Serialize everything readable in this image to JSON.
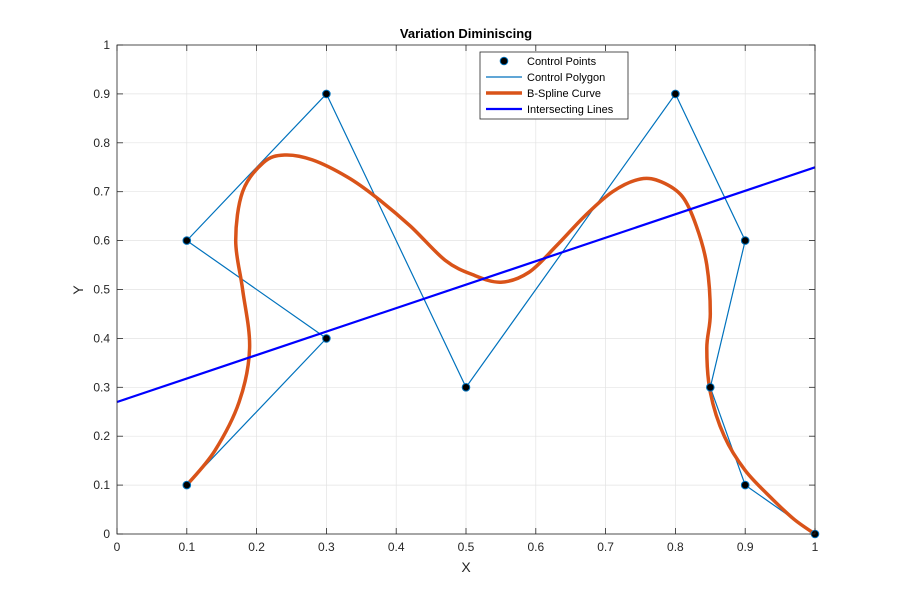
{
  "chart_data": {
    "type": "line",
    "title": "Variation Diminiscing",
    "xlabel": "X",
    "ylabel": "Y",
    "xlim": [
      0,
      1
    ],
    "ylim": [
      0,
      1
    ],
    "xticks": [
      0,
      0.1,
      0.2,
      0.3,
      0.4,
      0.5,
      0.6,
      0.7,
      0.8,
      0.9,
      1
    ],
    "yticks": [
      0,
      0.1,
      0.2,
      0.3,
      0.4,
      0.5,
      0.6,
      0.7,
      0.8,
      0.9,
      1
    ],
    "xtick_labels": [
      "0",
      "0.1",
      "0.2",
      "0.3",
      "0.4",
      "0.5",
      "0.6",
      "0.7",
      "0.8",
      "0.9",
      "1"
    ],
    "ytick_labels": [
      "0",
      "0.1",
      "0.2",
      "0.3",
      "0.4",
      "0.5",
      "0.6",
      "0.7",
      "0.8",
      "0.9",
      "1"
    ],
    "grid": true,
    "legend_position": "top-right",
    "series": [
      {
        "name": "Control Points",
        "kind": "markers",
        "color": "#000000",
        "marker_edge": "#0072BD",
        "x": [
          0.1,
          0.3,
          0.1,
          0.3,
          0.5,
          0.8,
          0.9,
          0.85,
          0.9,
          1
        ],
        "y": [
          0.1,
          0.4,
          0.6,
          0.9,
          0.3,
          0.9,
          0.6,
          0.3,
          0.1,
          0
        ]
      },
      {
        "name": "Control Polygon",
        "kind": "line",
        "color": "#0072BD",
        "x": [
          0.1,
          0.3,
          0.1,
          0.3,
          0.5,
          0.8,
          0.9,
          0.85,
          0.9,
          1
        ],
        "y": [
          0.1,
          0.4,
          0.6,
          0.9,
          0.3,
          0.9,
          0.6,
          0.3,
          0.1,
          0
        ]
      },
      {
        "name": "B-Spline Curve",
        "kind": "curve",
        "color": "#D95319",
        "x": [
          0.1,
          0.14,
          0.175,
          0.19,
          0.18,
          0.17,
          0.18,
          0.21,
          0.24,
          0.28,
          0.33,
          0.37,
          0.42,
          0.47,
          0.51,
          0.55,
          0.59,
          0.63,
          0.67,
          0.71,
          0.75,
          0.78,
          0.81,
          0.83,
          0.845,
          0.85,
          0.845,
          0.85,
          0.87,
          0.9,
          0.94,
          0.97,
          1
        ],
        "y": [
          0.1,
          0.17,
          0.27,
          0.38,
          0.5,
          0.6,
          0.7,
          0.76,
          0.775,
          0.765,
          0.73,
          0.69,
          0.63,
          0.56,
          0.53,
          0.515,
          0.535,
          0.59,
          0.65,
          0.7,
          0.726,
          0.72,
          0.69,
          0.63,
          0.55,
          0.45,
          0.38,
          0.29,
          0.2,
          0.13,
          0.07,
          0.03,
          0
        ]
      },
      {
        "name": "Intersecting Lines",
        "kind": "line",
        "color": "#0000FF",
        "x": [
          0,
          1
        ],
        "y": [
          0.27,
          0.75
        ]
      }
    ]
  }
}
